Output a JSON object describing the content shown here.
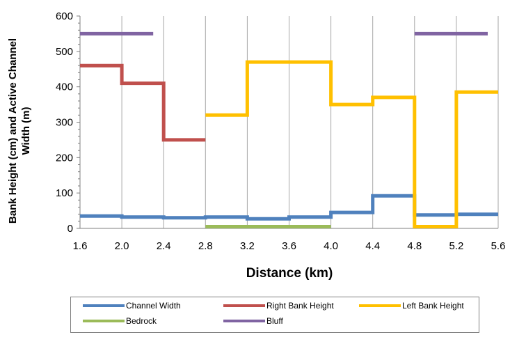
{
  "chart_data": {
    "type": "line",
    "title": "",
    "xlabel": "Distance (km)",
    "ylabel": "Bank Height (cm) and Active Channel Width (m)",
    "xlim": [
      1.6,
      5.6
    ],
    "ylim": [
      0,
      600
    ],
    "xticks": [
      "1.6",
      "2.0",
      "2.4",
      "2.8",
      "3.2",
      "3.6",
      "4.0",
      "4.4",
      "4.8",
      "5.2",
      "5.6"
    ],
    "yticks": [
      "0",
      "100",
      "200",
      "300",
      "400",
      "500",
      "600"
    ],
    "grid": "vertical",
    "legend_position": "bottom",
    "step": true,
    "series": [
      {
        "name": "Channel Width",
        "color": "#4f81bd",
        "points": [
          [
            1.6,
            35
          ],
          [
            2.0,
            35
          ],
          [
            2.0,
            32
          ],
          [
            2.4,
            32
          ],
          [
            2.4,
            30
          ],
          [
            2.8,
            30
          ],
          [
            2.8,
            32
          ],
          [
            3.2,
            32
          ],
          [
            3.2,
            27
          ],
          [
            3.6,
            27
          ],
          [
            3.6,
            32
          ],
          [
            4.0,
            32
          ],
          [
            4.0,
            45
          ],
          [
            4.4,
            45
          ],
          [
            4.4,
            92
          ],
          [
            4.8,
            92
          ],
          [
            4.8,
            38
          ],
          [
            5.2,
            38
          ],
          [
            5.2,
            40
          ],
          [
            5.6,
            40
          ]
        ]
      },
      {
        "name": "Right Bank Height",
        "color": "#c0504d",
        "points": [
          [
            1.6,
            460
          ],
          [
            2.0,
            460
          ],
          [
            2.0,
            410
          ],
          [
            2.4,
            410
          ],
          [
            2.4,
            250
          ],
          [
            2.8,
            250
          ]
        ]
      },
      {
        "name": "Left Bank Height",
        "color": "#ffc000",
        "points": [
          [
            2.8,
            320
          ],
          [
            3.2,
            320
          ],
          [
            3.2,
            470
          ],
          [
            3.6,
            470
          ],
          [
            4.0,
            470
          ],
          [
            4.0,
            350
          ],
          [
            4.4,
            350
          ],
          [
            4.4,
            370
          ],
          [
            4.8,
            370
          ],
          [
            4.8,
            5
          ],
          [
            5.2,
            5
          ],
          [
            5.2,
            385
          ],
          [
            5.6,
            385
          ]
        ]
      },
      {
        "name": "Bedrock",
        "color": "#9bbb59",
        "segments": [
          [
            [
              2.8,
              5
            ],
            [
              4.0,
              5
            ]
          ],
          [
            [
              4.8,
              5
            ],
            [
              5.2,
              5
            ]
          ]
        ]
      },
      {
        "name": "Bluff",
        "color": "#8064a2",
        "segments": [
          [
            [
              1.6,
              550
            ],
            [
              2.3,
              550
            ]
          ],
          [
            [
              4.8,
              550
            ],
            [
              5.5,
              550
            ]
          ]
        ]
      }
    ]
  }
}
